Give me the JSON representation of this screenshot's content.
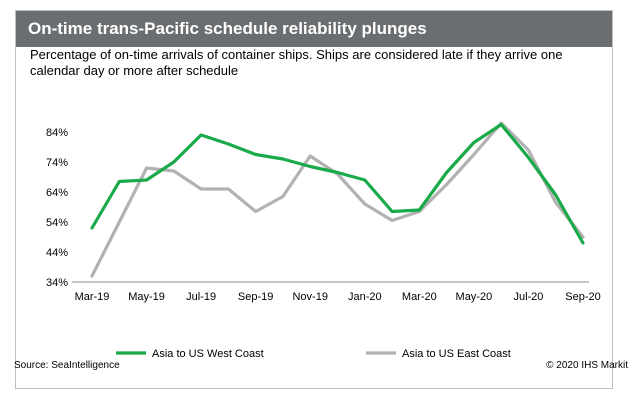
{
  "header": {
    "title": "On-time trans-Pacific schedule reliability plunges"
  },
  "subtitle": "Percentage of on-time arrivals of container ships. Ships are considered late if they arrive one calendar day or more after schedule",
  "footer": {
    "source": "Source: SeaIntelligence",
    "copyright": "© 2020 IHS Markit"
  },
  "colors": {
    "west_coast": "#1aaa4a",
    "east_coast": "#b2b2b2",
    "title_bar": "#6b6e70"
  },
  "chart_data": {
    "type": "line",
    "title": "On-time trans-Pacific schedule reliability plunges",
    "xlabel": "",
    "ylabel": "",
    "ylim": [
      34,
      90
    ],
    "yticks": [
      "34%",
      "44%",
      "54%",
      "64%",
      "74%",
      "84%"
    ],
    "xtick_labels": [
      "Mar-19",
      "May-19",
      "Jul-19",
      "Sep-19",
      "Nov-19",
      "Jan-20",
      "Mar-20",
      "May-20",
      "Jul-20",
      "Sep-20"
    ],
    "x": [
      "Mar-19",
      "Apr-19",
      "May-19",
      "Jun-19",
      "Jul-19",
      "Aug-19",
      "Sep-19",
      "Oct-19",
      "Nov-19",
      "Dec-19",
      "Jan-20",
      "Feb-20",
      "Mar-20",
      "Apr-20",
      "May-20",
      "Jun-20",
      "Jul-20",
      "Aug-20",
      "Sep-20"
    ],
    "grid": false,
    "legend_position": "bottom",
    "series": [
      {
        "name": "Asia to US West Coast",
        "values": [
          52,
          67.5,
          68,
          74,
          83,
          80,
          76.5,
          75,
          72.5,
          70.5,
          68,
          57.5,
          58,
          70.5,
          80.5,
          86.5,
          75.5,
          63,
          47
        ]
      },
      {
        "name": "Asia to US East Coast",
        "values": [
          36,
          54,
          72,
          71,
          65,
          65,
          57.5,
          62.5,
          76,
          70,
          60,
          54.5,
          57.5,
          66.5,
          76.5,
          87,
          78,
          60.5,
          49
        ]
      }
    ]
  }
}
